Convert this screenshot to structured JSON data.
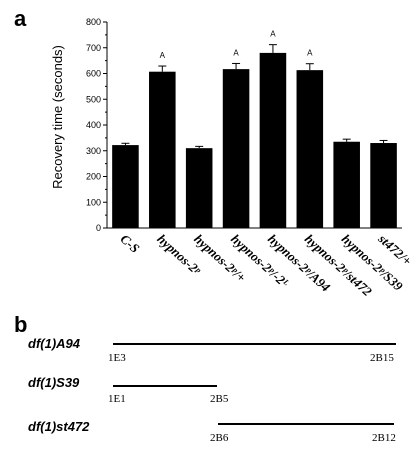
{
  "panels": {
    "a": "a",
    "b": "b"
  },
  "chart_data": {
    "type": "bar",
    "ylabel": "Recovery time (seconds)",
    "xlabel": "",
    "title": "",
    "ylim": [
      0,
      800
    ],
    "yticks": [
      0,
      100,
      200,
      300,
      400,
      500,
      600,
      700,
      800
    ],
    "grid": false,
    "categories": [
      "C-S",
      "hypnos-2ᵖ",
      "hypnos-2ᵖ/+",
      "hypnos-2ᵖ/-2ᴸ",
      "hypnos-2ᵖ/A94",
      "hypnos-2ᵖ/st472",
      "hypnos-2ᵖ/S39",
      "st472/+"
    ],
    "values": [
      322,
      607,
      310,
      617,
      680,
      613,
      335,
      330
    ],
    "errors": [
      7,
      22,
      7,
      22,
      32,
      25,
      10,
      10
    ],
    "significance": [
      "",
      "A",
      "",
      "A",
      "A",
      "A",
      "",
      ""
    ],
    "bar_color": "#000000"
  },
  "deficiencies": [
    {
      "name": "df(1)A94",
      "left_band": "1E3",
      "right_band": "2B15"
    },
    {
      "name": "df(1)S39",
      "left_band": "1E1",
      "right_band": "2B5"
    },
    {
      "name": "df(1)st472",
      "left_band": "2B6",
      "right_band": "2B12"
    }
  ]
}
